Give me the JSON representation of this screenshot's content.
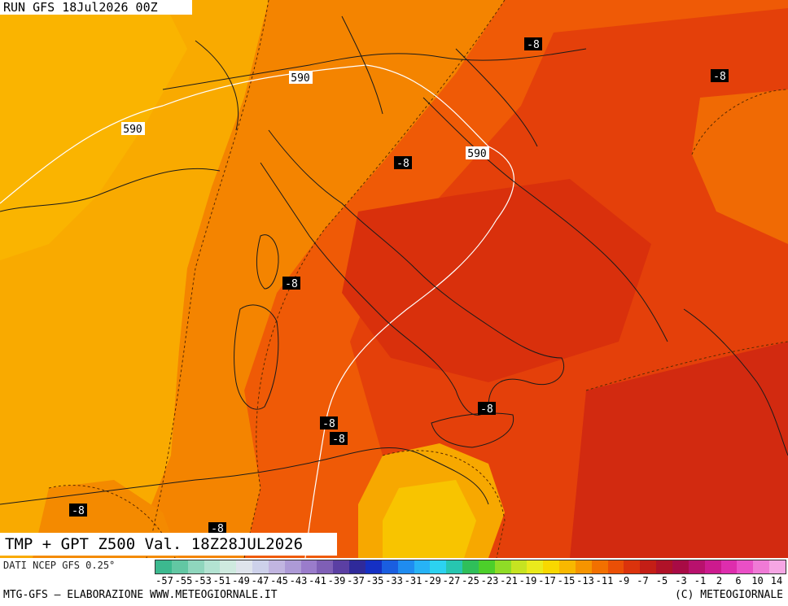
{
  "header": {
    "run_label": "RUN GFS 18Jul2026 00Z"
  },
  "map": {
    "title": "TMP + GPT Z500 Val. 18Z28JUL2026",
    "contour_labels": [
      {
        "kind": "geopotential",
        "text": "590"
      },
      {
        "kind": "geopotential",
        "text": "590"
      },
      {
        "kind": "geopotential",
        "text": "590"
      },
      {
        "kind": "temperature",
        "text": "-8"
      },
      {
        "kind": "temperature",
        "text": "-8"
      },
      {
        "kind": "temperature",
        "text": "-8"
      },
      {
        "kind": "temperature",
        "text": "-8"
      },
      {
        "kind": "temperature",
        "text": "-8"
      },
      {
        "kind": "temperature",
        "text": "-8"
      },
      {
        "kind": "temperature",
        "text": "-8"
      },
      {
        "kind": "temperature",
        "text": "-8"
      },
      {
        "kind": "temperature",
        "text": "-8"
      }
    ],
    "colors": {
      "cool_orange": "#f9a800",
      "warm_orange": "#f57a00",
      "hot_red": "#e0380c",
      "core_red": "#d3220e",
      "yellow_pocket": "#f8c000"
    }
  },
  "legend": {
    "source": "DATI NCEP GFS 0.25°",
    "ticks": [
      "-57",
      "-55",
      "-53",
      "-51",
      "-49",
      "-47",
      "-45",
      "-43",
      "-41",
      "-39",
      "-37",
      "-35",
      "-33",
      "-31",
      "-29",
      "-27",
      "-25",
      "-23",
      "-21",
      "-19",
      "-17",
      "-15",
      "-13",
      "-11",
      "-9",
      "-7",
      "-5",
      "-3",
      "-1",
      "2",
      "6",
      "10",
      "14"
    ],
    "colors": [
      "#3cb98f",
      "#62c7a3",
      "#8fd6bd",
      "#b3e3d2",
      "#cfeadf",
      "#dfe4ec",
      "#cdd1ea",
      "#c1b5e0",
      "#ad9ad6",
      "#9a7ccb",
      "#7f5fb6",
      "#5b3fa3",
      "#2f2a9a",
      "#1530c4",
      "#1a5ee0",
      "#1f8cf0",
      "#27b3f6",
      "#2cd2f0",
      "#27c6b0",
      "#2fbf5a",
      "#4ccf2a",
      "#8fdc26",
      "#c6e321",
      "#eaea1c",
      "#f8d800",
      "#f8b800",
      "#f69400",
      "#f27000",
      "#ea4f06",
      "#db330c",
      "#c41e16",
      "#b01228",
      "#a80b45",
      "#b8116d",
      "#cc1a8e",
      "#de2dad",
      "#ea4fc6",
      "#f07ad6",
      "#f6a6e4"
    ]
  },
  "footer": {
    "left": "MTG-GFS – ELABORAZIONE WWW.METEOGIORNALE.IT",
    "right": "(C) METEOGIORNALE"
  }
}
